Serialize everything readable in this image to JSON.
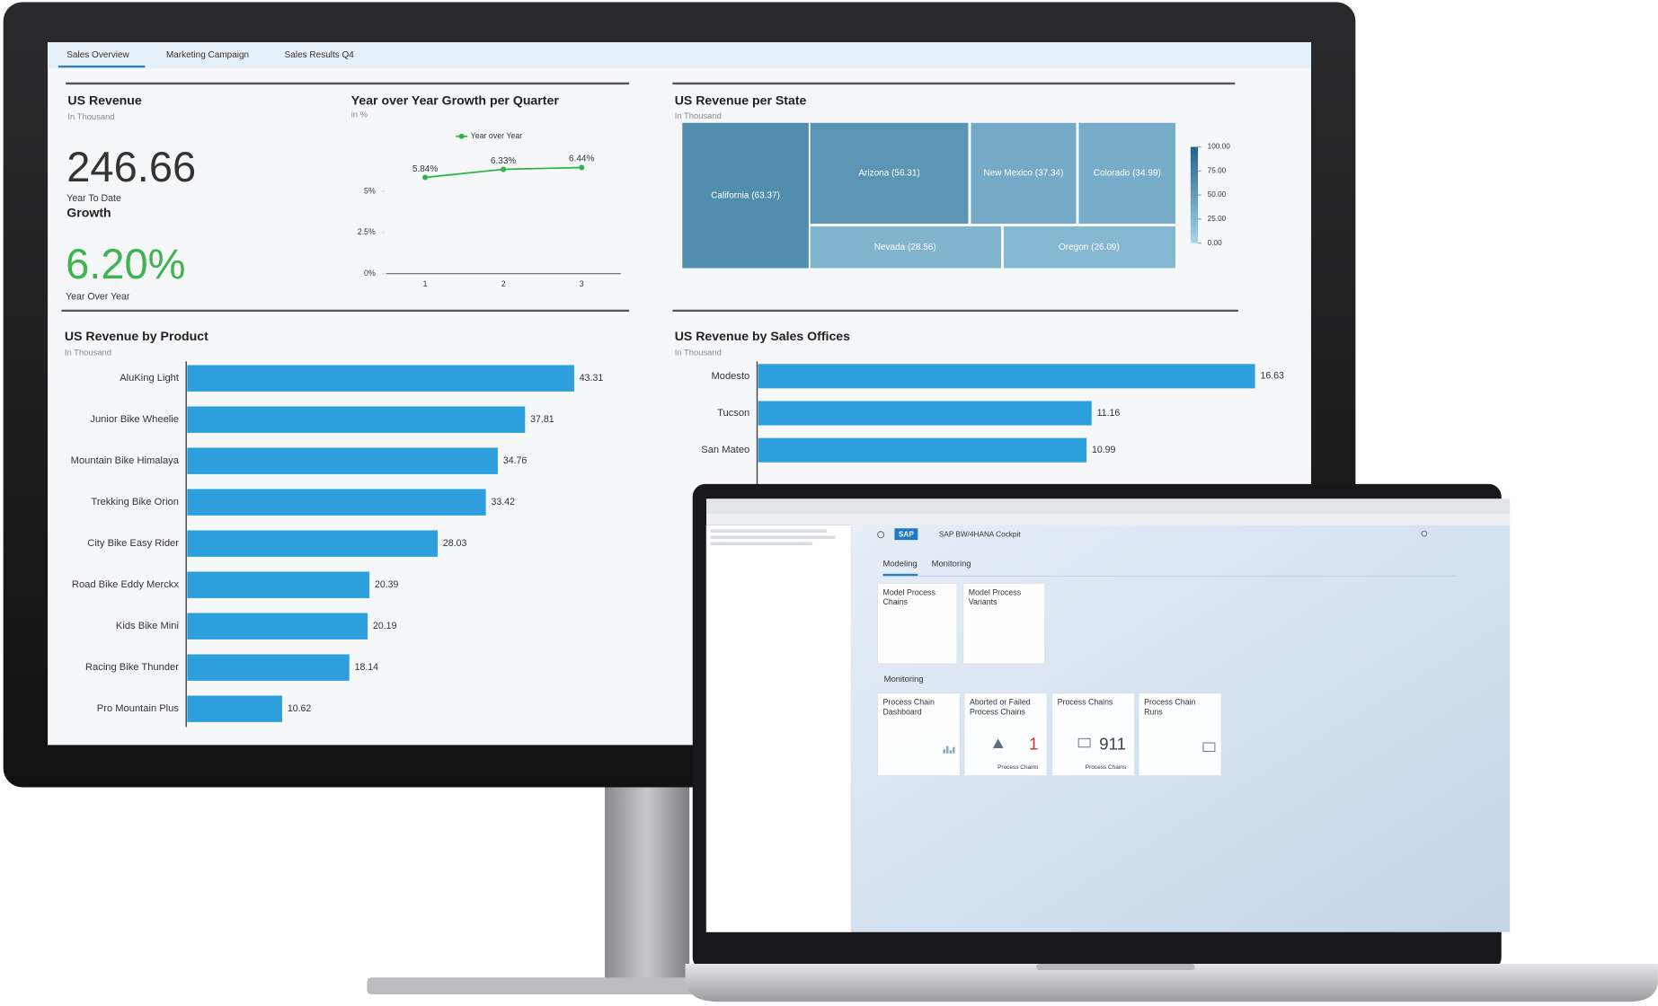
{
  "dashboard": {
    "tabs": [
      "Sales Overview",
      "Marketing Campaign",
      "Sales Results Q4"
    ],
    "revenue": {
      "title": "US Revenue",
      "subtitle": "In Thousand",
      "value": "246.66",
      "caption": "Year To Date"
    },
    "growth": {
      "title": "Growth",
      "value": "6.20%",
      "caption": "Year Over Year"
    },
    "growth_chart": {
      "type": "line",
      "title": "Year over Year Growth per Quarter",
      "subtitle": "in %",
      "legend": "Year over Year",
      "color": "#2fb44a",
      "categories": [
        "1",
        "2",
        "3"
      ],
      "values": [
        5.84,
        6.33,
        6.44
      ],
      "value_labels": [
        "5.84%",
        "6.33%",
        "6.44%"
      ],
      "ylim": [
        0,
        7.5
      ],
      "yticks": [
        {
          "value": 0,
          "label": "0%"
        },
        {
          "value": 2.5,
          "label": "2.5%"
        },
        {
          "value": 5,
          "label": "5%"
        }
      ]
    },
    "state_treemap": {
      "type": "treemap",
      "title": "US Revenue per State",
      "subtitle": "In Thousand",
      "labels": [
        "California (63.37)",
        "Arizona (56.31)",
        "New Mexico (37.34)",
        "Colorado (34.99)",
        "Nevada (28.56)",
        "Oregon (26.09)"
      ],
      "values": [
        63.37,
        56.31,
        37.34,
        34.99,
        28.56,
        26.09
      ],
      "scale_lim": [
        0,
        100
      ],
      "scale_ticks": [
        {
          "value": 100,
          "label": "100.00"
        },
        {
          "value": 75,
          "label": "75.00"
        },
        {
          "value": 50,
          "label": "50.00"
        },
        {
          "value": 25,
          "label": "25.00"
        },
        {
          "value": 0,
          "label": "0.00"
        }
      ]
    },
    "product_bars": {
      "type": "bar",
      "title": "US Revenue by Product",
      "subtitle": "In Thousand",
      "color": "#2c9fdc",
      "categories": [
        "AluKing Light",
        "Junior Bike Wheelie",
        "Mountain Bike Himalaya",
        "Trekking Bike Orion",
        "City Bike Easy Rider",
        "Road Bike Eddy Merckx",
        "Kids Bike Mini",
        "Racing Bike Thunder",
        "Pro Mountain Plus"
      ],
      "values": [
        43.31,
        37.81,
        34.76,
        33.42,
        28.03,
        20.39,
        20.19,
        18.14,
        10.62
      ]
    },
    "office_bars": {
      "type": "bar",
      "title": "US Revenue by Sales Offices",
      "subtitle": "In Thousand",
      "color": "#2c9fdc",
      "categories": [
        "Modesto",
        "Tucson",
        "San Mateo"
      ],
      "values": [
        16.63,
        11.16,
        10.99
      ]
    }
  },
  "cockpit": {
    "logo": "SAP",
    "app_title": "SAP BW/4HANA Cockpit",
    "tabs": [
      "Modeling",
      "Monitoring"
    ],
    "modeling_tiles": [
      "Model Process Chains",
      "Model Process Variants"
    ],
    "section": "Monitoring",
    "monitoring_tiles": [
      {
        "title": "Process Chain Dashboard"
      },
      {
        "title": "Aborted or Failed Process Chains",
        "count": 1,
        "unit": "Process Chains"
      },
      {
        "title": "Process Chains",
        "count": 911,
        "unit": "Process Chains"
      },
      {
        "title": "Process Chain Runs"
      }
    ]
  }
}
